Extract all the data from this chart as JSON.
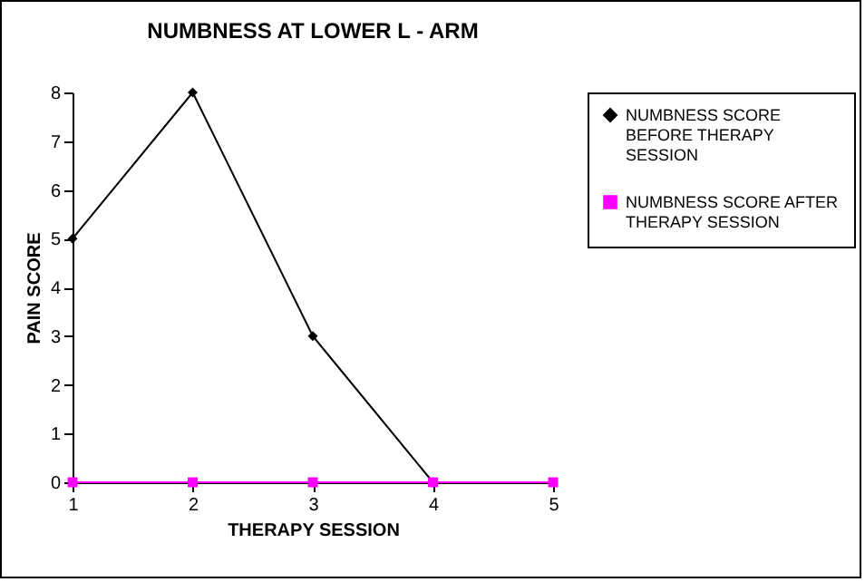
{
  "chart_data": {
    "type": "line",
    "title": "NUMBNESS AT LOWER L - ARM",
    "xlabel": "THERAPY SESSION",
    "ylabel": "PAIN SCORE",
    "categories": [
      "1",
      "2",
      "3",
      "4",
      "5"
    ],
    "series": [
      {
        "name": "NUMBNESS SCORE BEFORE THERAPY SESSION",
        "color": "#000000",
        "marker": "diamond",
        "values": [
          5,
          8,
          3,
          0,
          null
        ]
      },
      {
        "name": "NUMBNESS SCORE AFTER THERAPY SESSION",
        "color": "#ff00ff",
        "marker": "square",
        "values": [
          0,
          0,
          0,
          0,
          0
        ]
      }
    ],
    "ylim": [
      0,
      8
    ],
    "yticks": [
      0,
      1,
      2,
      3,
      4,
      5,
      6,
      7,
      8
    ],
    "grid": false,
    "legend": "right"
  }
}
